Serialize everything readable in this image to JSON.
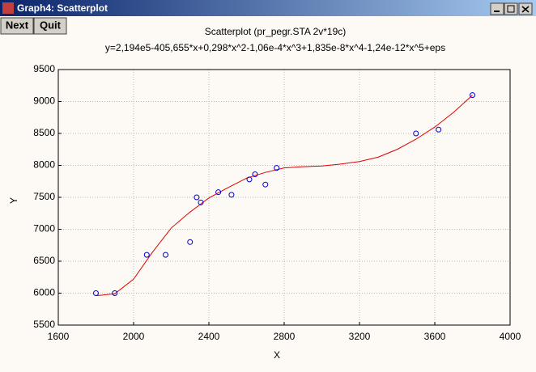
{
  "window": {
    "title": "Graph4: Scatterplot",
    "buttons": [
      "Next",
      "Quit"
    ]
  },
  "chart_data": {
    "type": "scatter",
    "title": "Scatterplot (pr_pegr.STA 2v*19c)",
    "subtitle": "y=2,194e5-405,655*x+0,298*x^2-1,06e-4*x^3+1,835e-8*x^4-1,24e-12*x^5+eps",
    "x_label": "X",
    "y_label": "Y",
    "x": [
      1800,
      1900,
      2070,
      2170,
      2300,
      2335,
      2357,
      2450,
      2520,
      2615,
      2645,
      2700,
      2760,
      3500,
      3620,
      3800
    ],
    "values": [
      6000,
      6000,
      6600,
      6600,
      6800,
      7500,
      7420,
      7580,
      7540,
      7780,
      7860,
      7700,
      7960,
      8500,
      8560,
      9100
    ],
    "color": "#0000cc",
    "fit": {
      "type": "line",
      "color": "#dd0000",
      "x": [
        1800,
        1900,
        2000,
        2100,
        2200,
        2300,
        2400,
        2500,
        2600,
        2700,
        2800,
        2900,
        3000,
        3100,
        3200,
        3300,
        3400,
        3500,
        3600,
        3700,
        3800
      ],
      "values": [
        5960,
        5990,
        6220,
        6640,
        7020,
        7270,
        7490,
        7650,
        7800,
        7890,
        7960,
        7980,
        7990,
        8020,
        8060,
        8130,
        8250,
        8410,
        8600,
        8830,
        9100
      ]
    },
    "xlim": [
      1600,
      4000
    ],
    "ylim": [
      5500,
      9500
    ],
    "xticks": [
      1600,
      2000,
      2400,
      2800,
      3200,
      3600,
      4000
    ],
    "yticks": [
      5500,
      6000,
      6500,
      7000,
      7500,
      8000,
      8500,
      9000,
      9500
    ],
    "grid": true
  }
}
